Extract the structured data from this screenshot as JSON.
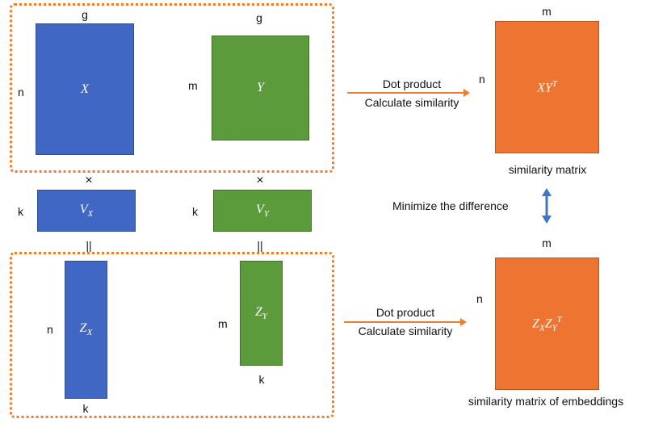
{
  "top_group": {
    "x_matrix": {
      "label": "X",
      "top_dim": "g",
      "side_dim": "n"
    },
    "y_matrix": {
      "label": "Y",
      "top_dim": "g",
      "side_dim": "m"
    }
  },
  "projection": {
    "times_left": "×",
    "times_right": "×",
    "vx": {
      "label": "V",
      "sub": "X",
      "side_dim": "k"
    },
    "vy": {
      "label": "V",
      "sub": "Y",
      "side_dim": "k"
    },
    "equals_left": "||",
    "equals_right": "||"
  },
  "bottom_group": {
    "zx_matrix": {
      "label": "Z",
      "sub": "X",
      "side_dim": "n",
      "bottom_dim": "k"
    },
    "zy_matrix": {
      "label": "Z",
      "sub": "Y",
      "side_dim": "m",
      "bottom_dim": "k"
    }
  },
  "arrows": {
    "top": {
      "line1": "Dot product",
      "line2": "Calculate similarity"
    },
    "bottom": {
      "line1": "Dot product",
      "line2": "Calculate similarity"
    }
  },
  "results": {
    "top": {
      "base": "XY",
      "sup": "T",
      "top_dim": "m",
      "side_dim": "n",
      "caption": "similarity matrix"
    },
    "bottom": {
      "base1": "Z",
      "sub1": "X",
      "base2": "Z",
      "sub2": "Y",
      "sup": "T",
      "top_dim": "m",
      "side_dim": "n",
      "caption": "similarity matrix of embeddings"
    }
  },
  "middle_note": "Minimize the difference",
  "colors": {
    "blue": "#3f67c3",
    "green": "#5b9b3c",
    "orange": "#ed7431",
    "dotted": "#ee7d31",
    "arrow": "#4472c4"
  }
}
